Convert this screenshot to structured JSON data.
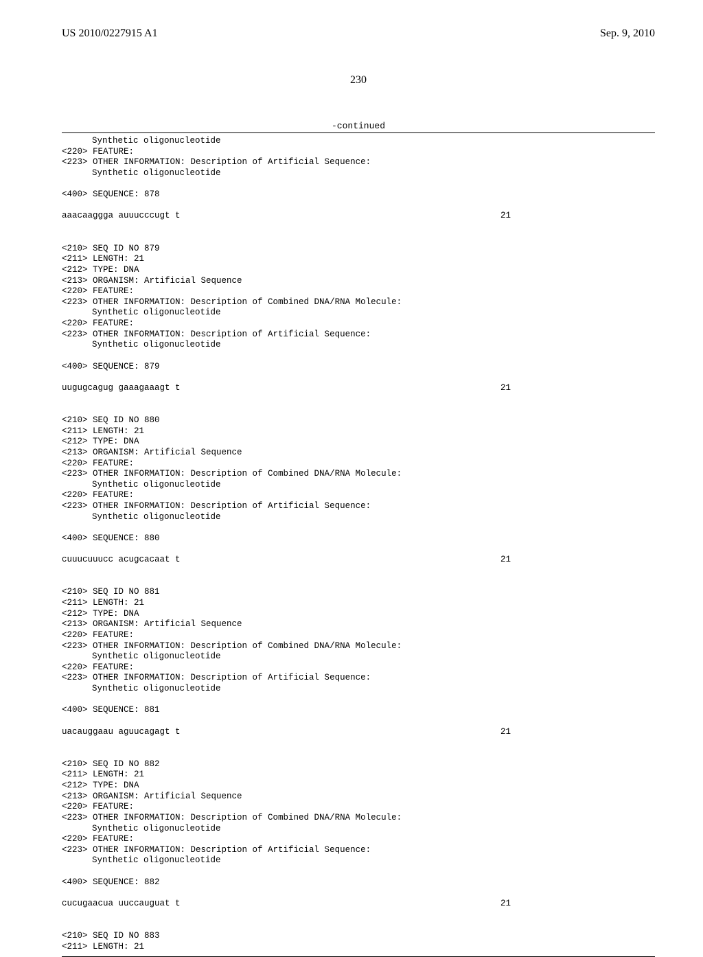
{
  "header": {
    "pub_number": "US 2010/0227915 A1",
    "pub_date": "Sep. 9, 2010"
  },
  "page_number": "230",
  "continued_label": "-continued",
  "sections": [
    {
      "lines": [
        {
          "t": "indent",
          "v": "Synthetic oligonucleotide"
        },
        {
          "t": "plain",
          "v": "<220> FEATURE:"
        },
        {
          "t": "plain",
          "v": "<223> OTHER INFORMATION: Description of Artificial Sequence:"
        },
        {
          "t": "indent",
          "v": "Synthetic oligonucleotide"
        },
        {
          "t": "blank"
        },
        {
          "t": "plain",
          "v": "<400> SEQUENCE: 878"
        },
        {
          "t": "blank"
        },
        {
          "t": "seq",
          "seq": "aaacaaggga auuucccugt t",
          "len": "21"
        }
      ]
    },
    {
      "lines": [
        {
          "t": "plain",
          "v": "<210> SEQ ID NO 879"
        },
        {
          "t": "plain",
          "v": "<211> LENGTH: 21"
        },
        {
          "t": "plain",
          "v": "<212> TYPE: DNA"
        },
        {
          "t": "plain",
          "v": "<213> ORGANISM: Artificial Sequence"
        },
        {
          "t": "plain",
          "v": "<220> FEATURE:"
        },
        {
          "t": "plain",
          "v": "<223> OTHER INFORMATION: Description of Combined DNA/RNA Molecule:"
        },
        {
          "t": "indent",
          "v": "Synthetic oligonucleotide"
        },
        {
          "t": "plain",
          "v": "<220> FEATURE:"
        },
        {
          "t": "plain",
          "v": "<223> OTHER INFORMATION: Description of Artificial Sequence:"
        },
        {
          "t": "indent",
          "v": "Synthetic oligonucleotide"
        },
        {
          "t": "blank"
        },
        {
          "t": "plain",
          "v": "<400> SEQUENCE: 879"
        },
        {
          "t": "blank"
        },
        {
          "t": "seq",
          "seq": "uugugcagug gaaagaaagt t",
          "len": "21"
        }
      ]
    },
    {
      "lines": [
        {
          "t": "plain",
          "v": "<210> SEQ ID NO 880"
        },
        {
          "t": "plain",
          "v": "<211> LENGTH: 21"
        },
        {
          "t": "plain",
          "v": "<212> TYPE: DNA"
        },
        {
          "t": "plain",
          "v": "<213> ORGANISM: Artificial Sequence"
        },
        {
          "t": "plain",
          "v": "<220> FEATURE:"
        },
        {
          "t": "plain",
          "v": "<223> OTHER INFORMATION: Description of Combined DNA/RNA Molecule:"
        },
        {
          "t": "indent",
          "v": "Synthetic oligonucleotide"
        },
        {
          "t": "plain",
          "v": "<220> FEATURE:"
        },
        {
          "t": "plain",
          "v": "<223> OTHER INFORMATION: Description of Artificial Sequence:"
        },
        {
          "t": "indent",
          "v": "Synthetic oligonucleotide"
        },
        {
          "t": "blank"
        },
        {
          "t": "plain",
          "v": "<400> SEQUENCE: 880"
        },
        {
          "t": "blank"
        },
        {
          "t": "seq",
          "seq": "cuuucuuucc acugcacaat t",
          "len": "21"
        }
      ]
    },
    {
      "lines": [
        {
          "t": "plain",
          "v": "<210> SEQ ID NO 881"
        },
        {
          "t": "plain",
          "v": "<211> LENGTH: 21"
        },
        {
          "t": "plain",
          "v": "<212> TYPE: DNA"
        },
        {
          "t": "plain",
          "v": "<213> ORGANISM: Artificial Sequence"
        },
        {
          "t": "plain",
          "v": "<220> FEATURE:"
        },
        {
          "t": "plain",
          "v": "<223> OTHER INFORMATION: Description of Combined DNA/RNA Molecule:"
        },
        {
          "t": "indent",
          "v": "Synthetic oligonucleotide"
        },
        {
          "t": "plain",
          "v": "<220> FEATURE:"
        },
        {
          "t": "plain",
          "v": "<223> OTHER INFORMATION: Description of Artificial Sequence:"
        },
        {
          "t": "indent",
          "v": "Synthetic oligonucleotide"
        },
        {
          "t": "blank"
        },
        {
          "t": "plain",
          "v": "<400> SEQUENCE: 881"
        },
        {
          "t": "blank"
        },
        {
          "t": "seq",
          "seq": "uacauggaau aguucagagt t",
          "len": "21"
        }
      ]
    },
    {
      "lines": [
        {
          "t": "plain",
          "v": "<210> SEQ ID NO 882"
        },
        {
          "t": "plain",
          "v": "<211> LENGTH: 21"
        },
        {
          "t": "plain",
          "v": "<212> TYPE: DNA"
        },
        {
          "t": "plain",
          "v": "<213> ORGANISM: Artificial Sequence"
        },
        {
          "t": "plain",
          "v": "<220> FEATURE:"
        },
        {
          "t": "plain",
          "v": "<223> OTHER INFORMATION: Description of Combined DNA/RNA Molecule:"
        },
        {
          "t": "indent",
          "v": "Synthetic oligonucleotide"
        },
        {
          "t": "plain",
          "v": "<220> FEATURE:"
        },
        {
          "t": "plain",
          "v": "<223> OTHER INFORMATION: Description of Artificial Sequence:"
        },
        {
          "t": "indent",
          "v": "Synthetic oligonucleotide"
        },
        {
          "t": "blank"
        },
        {
          "t": "plain",
          "v": "<400> SEQUENCE: 882"
        },
        {
          "t": "blank"
        },
        {
          "t": "seq",
          "seq": "cucugaacua uuccauguat t",
          "len": "21"
        }
      ]
    },
    {
      "lines": [
        {
          "t": "plain",
          "v": "<210> SEQ ID NO 883"
        },
        {
          "t": "plain",
          "v": "<211> LENGTH: 21"
        }
      ]
    }
  ]
}
